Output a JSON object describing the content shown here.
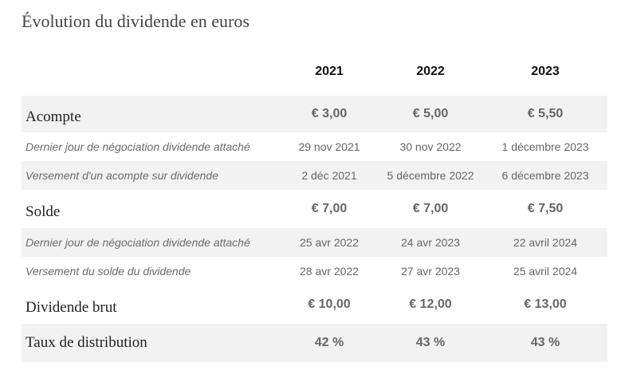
{
  "title": "Évolution du dividende en euros",
  "years": [
    "2021",
    "2022",
    "2023"
  ],
  "rows": [
    {
      "label": "Acompte",
      "values": [
        "€ 3,00",
        "€ 5,00",
        "€ 5,50"
      ]
    },
    {
      "label": "Dernier jour de négociation dividende attaché",
      "values": [
        "29 nov 2021",
        "30 nov 2022",
        "1 décembre 2023"
      ]
    },
    {
      "label": "Versement d'un acompte sur dividende",
      "values": [
        "2 déc 2021",
        "5 décembre 2022",
        "6 décembre 2023"
      ]
    },
    {
      "label": "Solde",
      "values": [
        "€ 7,00",
        "€ 7,00",
        "€ 7,50"
      ]
    },
    {
      "label": "Dernier jour de négociation dividende attaché",
      "values": [
        "25 avr 2022",
        "24 avr 2023",
        "22 avril 2024"
      ]
    },
    {
      "label": "Versement du solde du dividende",
      "values": [
        "28 avr 2022",
        "27 avr 2023",
        "25 avril 2024"
      ]
    },
    {
      "label": "Dividende brut",
      "values": [
        "€ 10,00",
        "€ 12,00",
        "€ 13,00"
      ]
    },
    {
      "label": "Taux de distribution",
      "values": [
        "42 %",
        "43 %",
        "43 %"
      ]
    }
  ]
}
